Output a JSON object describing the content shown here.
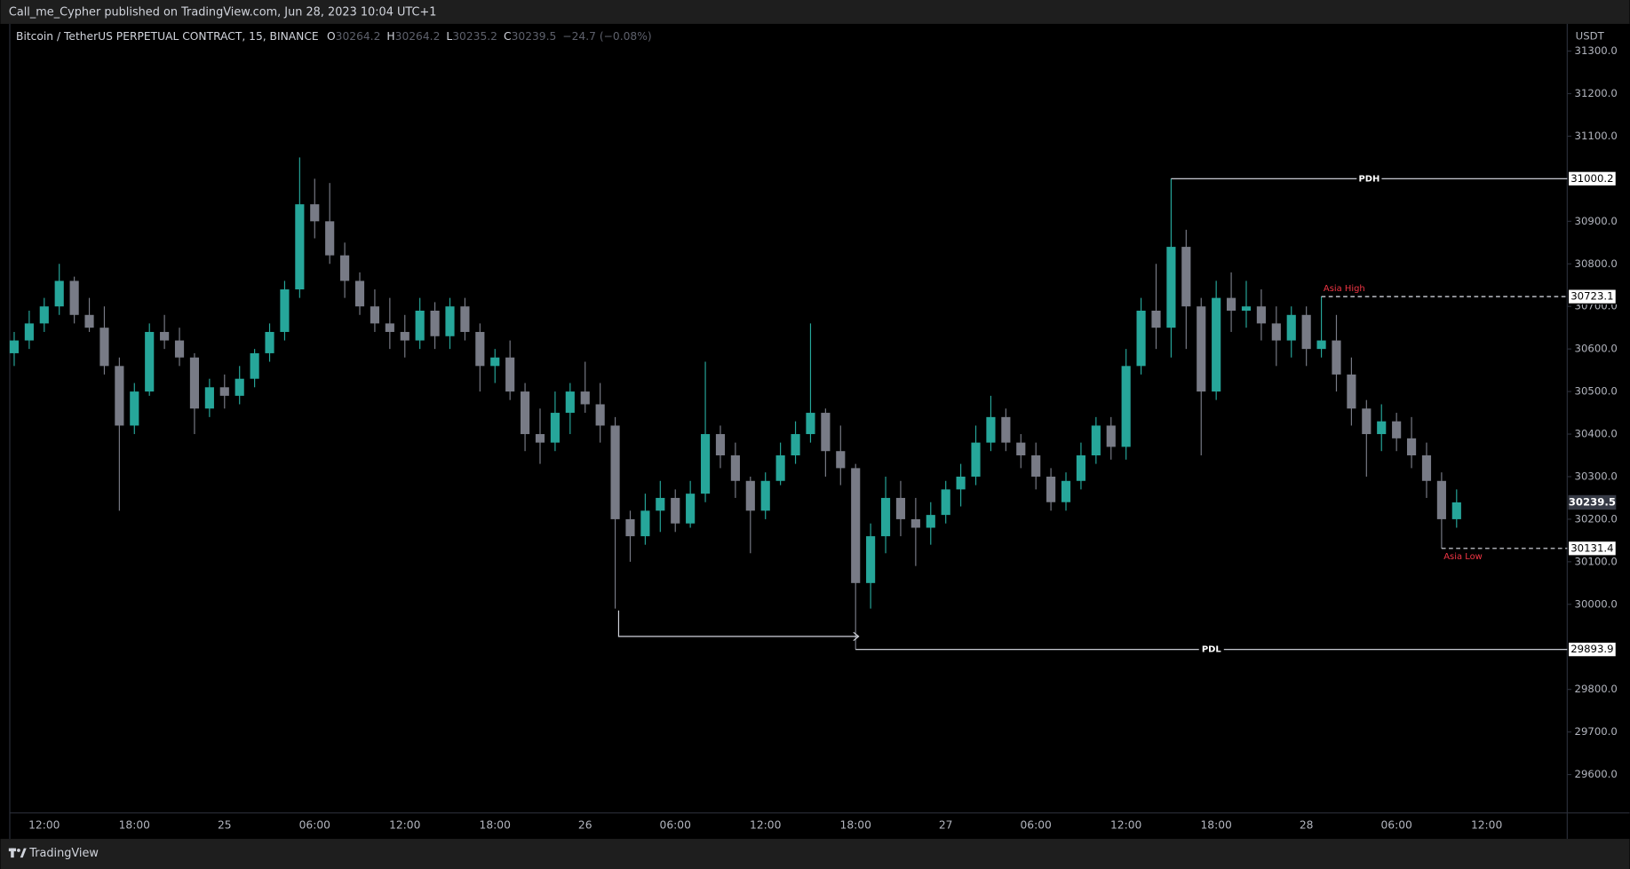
{
  "header": {
    "text": "Call_me_Cypher published on TradingView.com, Jun 28, 2023 10:04 UTC+1"
  },
  "footer": {
    "brand": "TradingView"
  },
  "chart_data": {
    "type": "candlestick",
    "title": "Bitcoin / TetherUS PERPETUAL CONTRACT, 15, BINANCE",
    "legend_fields": [
      {
        "key": "O",
        "value": 30264.2
      },
      {
        "key": "H",
        "value": 30264.2
      },
      {
        "key": "L",
        "value": 30235.2
      },
      {
        "key": "C",
        "value": 30239.5
      }
    ],
    "change": "−24.7 (−0.08%)",
    "y_unit": "USDT",
    "up_color": "#26a69a",
    "down_color": "#787b86",
    "ylim": [
      29500,
      31320
    ],
    "yticks": [
      {
        "value": 31300,
        "label": "31300.0"
      },
      {
        "value": 31200,
        "label": "31200.0"
      },
      {
        "value": 31100,
        "label": "31100.0"
      },
      {
        "value": 30900,
        "label": "30900.0"
      },
      {
        "value": 30800,
        "label": "30800.0"
      },
      {
        "value": 30700,
        "label": "30700.0"
      },
      {
        "value": 30600,
        "label": "30600.0"
      },
      {
        "value": 30500,
        "label": "30500.0"
      },
      {
        "value": 30400,
        "label": "30400.0"
      },
      {
        "value": 30300,
        "label": "30300.0"
      },
      {
        "value": 30200,
        "label": "30200.0"
      },
      {
        "value": 30100,
        "label": "30100.0"
      },
      {
        "value": 30000,
        "label": "30000.0"
      },
      {
        "value": 29800,
        "label": "29800.0"
      },
      {
        "value": 29700,
        "label": "29700.0"
      },
      {
        "value": 29600,
        "label": "29600.0"
      }
    ],
    "categories": [
      null,
      null,
      "12:00",
      null,
      null,
      null,
      null,
      null,
      "18:00",
      null,
      null,
      null,
      null,
      null,
      "25",
      null,
      null,
      null,
      null,
      null,
      "06:00",
      null,
      null,
      null,
      null,
      null,
      "12:00",
      null,
      null,
      null,
      null,
      null,
      "18:00",
      null,
      null,
      null,
      null,
      null,
      "26",
      null,
      null,
      null,
      null,
      null,
      "06:00",
      null,
      null,
      null,
      null,
      null,
      "12:00",
      null,
      null,
      null,
      null,
      null,
      "18:00",
      null,
      null,
      null,
      null,
      null,
      "27",
      null,
      null,
      null,
      null,
      null,
      "06:00",
      null,
      null,
      null,
      null,
      null,
      "12:00",
      null,
      null,
      null,
      null,
      null,
      "18:00",
      null,
      null,
      null,
      null,
      null,
      "28",
      null,
      null,
      null,
      null,
      null,
      "06:00",
      null,
      null,
      null,
      null,
      null,
      "12:00",
      null,
      null,
      null,
      null,
      null
    ],
    "open": [
      30590,
      30620,
      30660,
      30700,
      30760,
      30680,
      30650,
      30560,
      30420,
      30500,
      30640,
      30620,
      30580,
      30460,
      30510,
      30490,
      30530,
      30590,
      30640,
      30740,
      30940,
      30900,
      30820,
      30760,
      30700,
      30660,
      30640,
      30620,
      30690,
      30630,
      30700,
      30640,
      30560,
      30580,
      30500,
      30400,
      30380,
      30450,
      30500,
      30470,
      30420,
      30200,
      30160,
      30220,
      30250,
      30190,
      30260,
      30400,
      30350,
      30290,
      30220,
      30290,
      30350,
      30400,
      30450,
      30360,
      30320,
      30050,
      30160,
      30250,
      30200,
      30180,
      30210,
      30270,
      30300,
      30380,
      30440,
      30380,
      30350,
      30300,
      30240,
      30290,
      30350,
      30420,
      30370,
      30560,
      30690,
      30650,
      30840,
      30700,
      30500,
      30720,
      30690,
      30700,
      30660,
      30620,
      30680,
      30600,
      30620,
      30540,
      30460,
      30400,
      30430,
      30390,
      30350,
      30290,
      30200,
      null,
      null,
      null,
      null,
      null,
      null,
      null
    ],
    "high": [
      30640,
      30690,
      30720,
      30800,
      30770,
      30720,
      30700,
      30580,
      30520,
      30660,
      30680,
      30650,
      30590,
      30530,
      30540,
      30560,
      30600,
      30660,
      30760,
      31050,
      31000,
      30990,
      30850,
      30780,
      30740,
      30720,
      30680,
      30720,
      30710,
      30720,
      30720,
      30660,
      30600,
      30620,
      30520,
      30460,
      30500,
      30520,
      30570,
      30520,
      30440,
      30220,
      30260,
      30290,
      30270,
      30290,
      30570,
      30420,
      30380,
      30300,
      30310,
      30380,
      30430,
      30660,
      30460,
      30420,
      30330,
      30190,
      30300,
      30290,
      30250,
      30240,
      30290,
      30330,
      30420,
      30490,
      30460,
      30400,
      30380,
      30320,
      30310,
      30380,
      30440,
      30440,
      30600,
      30720,
      30800,
      31000.2,
      30880,
      30720,
      30760,
      30780,
      30760,
      30740,
      30700,
      30700,
      30700,
      30723.1,
      30680,
      30580,
      30480,
      30470,
      30450,
      30440,
      30380,
      30310,
      30270,
      null,
      null,
      null,
      null,
      null,
      null,
      null
    ],
    "low": [
      30560,
      30600,
      30640,
      30680,
      30660,
      30640,
      30540,
      30220,
      30400,
      30490,
      30600,
      30560,
      30400,
      30440,
      30460,
      30470,
      30510,
      30570,
      30620,
      30720,
      30860,
      30800,
      30720,
      30680,
      30640,
      30600,
      30580,
      30600,
      30600,
      30600,
      30620,
      30500,
      30520,
      30480,
      30360,
      30330,
      30360,
      30400,
      30450,
      30380,
      29990,
      30100,
      30140,
      30170,
      30170,
      30180,
      30240,
      30320,
      30250,
      30120,
      30200,
      30280,
      30330,
      30380,
      30300,
      30280,
      29893.9,
      29990,
      30120,
      30160,
      30090,
      30140,
      30190,
      30230,
      30280,
      30360,
      30360,
      30320,
      30270,
      30220,
      30220,
      30270,
      30330,
      30340,
      30340,
      30540,
      30600,
      30580,
      30600,
      30350,
      30480,
      30640,
      30650,
      30620,
      30560,
      30580,
      30560,
      30580,
      30500,
      30420,
      30300,
      30360,
      30360,
      30320,
      30250,
      30131.4,
      30180,
      null,
      null,
      null,
      null,
      null,
      null,
      null
    ],
    "close": [
      30620,
      30660,
      30700,
      30760,
      30680,
      30650,
      30560,
      30420,
      30500,
      30640,
      30620,
      30580,
      30460,
      30510,
      30490,
      30530,
      30590,
      30640,
      30740,
      30940,
      30900,
      30820,
      30760,
      30700,
      30660,
      30640,
      30620,
      30690,
      30630,
      30700,
      30640,
      30560,
      30580,
      30500,
      30400,
      30380,
      30450,
      30500,
      30470,
      30420,
      30200,
      30160,
      30220,
      30250,
      30190,
      30260,
      30400,
      30350,
      30290,
      30220,
      30290,
      30350,
      30400,
      30450,
      30360,
      30320,
      30050,
      30160,
      30250,
      30200,
      30180,
      30210,
      30270,
      30300,
      30380,
      30440,
      30380,
      30350,
      30300,
      30240,
      30290,
      30350,
      30420,
      30370,
      30560,
      30690,
      30650,
      30840,
      30700,
      30500,
      30720,
      30690,
      30700,
      30660,
      30620,
      30680,
      30600,
      30620,
      30540,
      30460,
      30400,
      30430,
      30390,
      30350,
      30290,
      30200,
      30239.5,
      null,
      null,
      null,
      null,
      null,
      null,
      null
    ],
    "levels": [
      {
        "label": "PDH",
        "value": 31000.2,
        "dash": false,
        "label_color": "#ffffff",
        "label_position": "middle"
      },
      {
        "label": "Asia High",
        "value": 30723.1,
        "dash": true,
        "label_color": "#f23645",
        "label_position": "above"
      },
      {
        "label": "Asia Low",
        "value": 30131.4,
        "dash": true,
        "label_color": "#f23645",
        "label_position": "below"
      },
      {
        "label": "PDL",
        "value": 29893.9,
        "dash": false,
        "label_color": "#ffffff",
        "label_position": "middle"
      }
    ]
  }
}
